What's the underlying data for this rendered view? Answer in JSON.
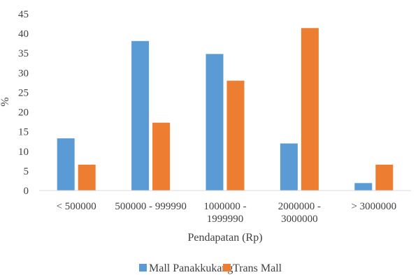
{
  "chart_data": {
    "type": "bar",
    "categories": [
      [
        "< 500000"
      ],
      [
        "500000 - 999990"
      ],
      [
        "1000000 -",
        "1999990"
      ],
      [
        "2000000 -",
        "3000000"
      ],
      [
        "> 3000000"
      ]
    ],
    "series": [
      {
        "name": "Mall Panakkukang",
        "values": [
          13.3,
          38.1,
          34.8,
          12.0,
          1.9
        ],
        "color": "#5B9BD5"
      },
      {
        "name": "Trans Mall",
        "values": [
          6.6,
          17.3,
          28.0,
          41.4,
          6.6
        ],
        "color": "#ED7D31"
      }
    ],
    "xlabel": "Pendapatan (Rp)",
    "ylabel": "%",
    "ylim": [
      0,
      45
    ],
    "yticks": [
      0,
      5,
      10,
      15,
      20,
      25,
      30,
      35,
      40,
      45
    ],
    "grid": false,
    "legend": "bottom"
  }
}
